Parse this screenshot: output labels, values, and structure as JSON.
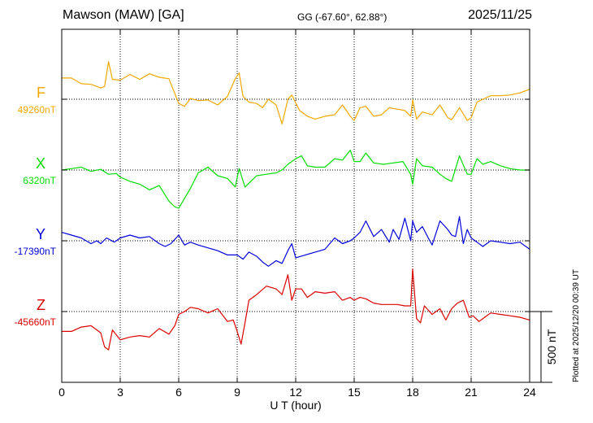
{
  "header": {
    "title": "Mawson (MAW)  [GA]",
    "coords": "GG (-67.60°,  62.88°)",
    "date": "2025/11/25"
  },
  "footer": {
    "plotted_note": "Plotted at 2025/12/20 00:39 UT"
  },
  "colors": {
    "F": "#f0a800",
    "X": "#00dd00",
    "Y": "#0000dd",
    "Z": "#dd0000",
    "axes": "#000000",
    "grid": "#000000"
  },
  "chart_data": {
    "type": "line",
    "xlabel": "U T (hour)",
    "xlim": [
      0,
      24
    ],
    "xticks": [
      0,
      3,
      6,
      9,
      12,
      15,
      18,
      21,
      24
    ],
    "xtick_labels": [
      "0",
      "3",
      "6",
      "9",
      "12",
      "15",
      "18",
      "21",
      "24"
    ],
    "scale_bar_label": "500 nT",
    "scale_bar_nT": 500,
    "grid": true,
    "series": [
      {
        "name": "F",
        "baseline_label": "49260nT",
        "color": "#f0a800",
        "x": [
          0,
          0.5,
          1,
          1.5,
          2,
          2.2,
          2.4,
          2.6,
          3,
          3.5,
          4,
          4.5,
          5,
          5.5,
          6,
          6.3,
          6.6,
          7,
          7.5,
          8,
          8.5,
          8.9,
          9.1,
          9.3,
          9.6,
          10,
          10.3,
          10.6,
          11,
          11.3,
          11.6,
          11.8,
          12.2,
          12.6,
          13,
          13.5,
          14,
          14.4,
          14.8,
          15,
          15.3,
          15.6,
          16,
          16.4,
          16.8,
          17.2,
          17.6,
          17.9,
          18,
          18.2,
          18.5,
          19,
          19.4,
          19.8,
          20,
          20.4,
          20.8,
          21,
          21.3,
          21.6,
          22,
          22.5,
          23,
          23.5,
          24
        ],
        "y": [
          150,
          150,
          110,
          105,
          80,
          90,
          265,
          140,
          135,
          175,
          140,
          180,
          155,
          145,
          -30,
          -50,
          5,
          -10,
          -5,
          -40,
          20,
          145,
          185,
          20,
          -20,
          -30,
          -60,
          0,
          -40,
          -175,
          0,
          30,
          -80,
          -120,
          -140,
          -120,
          -110,
          -40,
          -120,
          -150,
          -60,
          -50,
          -120,
          -110,
          -60,
          -70,
          -80,
          -120,
          -5,
          -140,
          -90,
          -110,
          -40,
          -130,
          -145,
          -60,
          -150,
          -130,
          -20,
          0,
          25,
          25,
          30,
          45,
          70
        ]
      },
      {
        "name": "X",
        "baseline_label": "6320nT",
        "color": "#00dd00",
        "x": [
          0,
          0.5,
          1,
          1.5,
          2,
          2.4,
          2.8,
          3,
          3.5,
          4,
          4.5,
          5,
          5.5,
          5.8,
          6,
          6.3,
          6.6,
          7,
          7.5,
          8,
          8.5,
          8.9,
          9.1,
          9.4,
          9.7,
          10,
          10.5,
          11,
          11.3,
          11.6,
          12,
          12.3,
          12.6,
          13,
          13.5,
          14,
          14.4,
          14.8,
          15,
          15.3,
          15.6,
          16,
          16.5,
          17,
          17.5,
          17.9,
          18,
          18.2,
          18.5,
          19,
          19.4,
          19.7,
          20,
          20.4,
          20.8,
          21,
          21.3,
          21.6,
          22,
          22.5,
          23,
          23.5,
          24
        ],
        "y": [
          0,
          10,
          20,
          -10,
          5,
          -30,
          -25,
          -50,
          -80,
          -100,
          -140,
          -110,
          -220,
          -260,
          -270,
          -200,
          -130,
          -20,
          20,
          -40,
          -60,
          -120,
          10,
          -120,
          -80,
          -40,
          -30,
          -20,
          0,
          40,
          80,
          100,
          30,
          20,
          20,
          80,
          70,
          140,
          60,
          60,
          120,
          50,
          40,
          50,
          60,
          -30,
          -100,
          80,
          30,
          20,
          -30,
          -60,
          -80,
          100,
          -30,
          -30,
          80,
          40,
          60,
          30,
          10,
          0,
          0
        ]
      },
      {
        "name": "Y",
        "baseline_label": "-17390nT",
        "color": "#0000dd",
        "x": [
          0,
          0.5,
          1,
          1.5,
          1.8,
          2,
          2.3,
          2.7,
          3,
          3.5,
          4,
          4.5,
          4.8,
          5,
          5.3,
          5.6,
          6,
          6.3,
          6.6,
          7,
          7.5,
          8,
          8.5,
          9,
          9.3,
          9.6,
          10,
          10.3,
          10.6,
          11,
          11.3,
          11.6,
          11.8,
          12,
          12.5,
          13,
          13.5,
          14,
          14.4,
          14.8,
          15,
          15.3,
          15.6,
          16,
          16.4,
          16.8,
          17,
          17.3,
          17.6,
          17.9,
          18,
          18.2,
          18.5,
          18.8,
          19,
          19.4,
          19.8,
          20,
          20.2,
          20.4,
          20.6,
          20.8,
          21,
          21.3,
          21.6,
          22,
          22.5,
          23,
          23.5,
          24
        ],
        "y": [
          60,
          40,
          20,
          -20,
          0,
          -20,
          20,
          -10,
          20,
          40,
          20,
          30,
          0,
          -20,
          -40,
          -20,
          40,
          -30,
          -10,
          -30,
          -50,
          -70,
          -100,
          -100,
          -130,
          -80,
          -110,
          -150,
          -180,
          -140,
          -160,
          -70,
          -20,
          -120,
          -100,
          -80,
          -60,
          20,
          -20,
          0,
          20,
          60,
          140,
          30,
          80,
          -10,
          80,
          10,
          160,
          0,
          140,
          60,
          100,
          20,
          -30,
          140,
          80,
          40,
          30,
          170,
          -20,
          80,
          20,
          -10,
          -40,
          0,
          -10,
          -20,
          -10,
          -60
        ]
      },
      {
        "name": "Z",
        "baseline_label": "-45660nT",
        "color": "#dd0000",
        "x": [
          0,
          0.5,
          1,
          1.5,
          2,
          2.2,
          2.4,
          2.6,
          3,
          3.5,
          4,
          4.5,
          5,
          5.5,
          5.8,
          6,
          6.3,
          6.6,
          7,
          7.5,
          8,
          8.5,
          8.8,
          9,
          9.2,
          9.4,
          9.6,
          10,
          10.5,
          11,
          11.3,
          11.6,
          11.8,
          12,
          12.3,
          12.6,
          13,
          13.5,
          14,
          14.4,
          14.8,
          15,
          15.3,
          15.6,
          16,
          16.4,
          16.8,
          17.2,
          17.6,
          17.9,
          18,
          18.2,
          18.4,
          18.6,
          19,
          19.4,
          19.7,
          20,
          20.3,
          20.6,
          20.9,
          21.1,
          21.4,
          21.7,
          22,
          22.5,
          23,
          23.5,
          24
        ],
        "y": [
          -140,
          -140,
          -110,
          -100,
          -150,
          -250,
          -270,
          -130,
          -200,
          -180,
          -170,
          -180,
          -120,
          -160,
          -100,
          -20,
          0,
          30,
          20,
          -10,
          20,
          -70,
          -60,
          -140,
          -230,
          -80,
          80,
          120,
          180,
          160,
          120,
          260,
          80,
          160,
          160,
          100,
          140,
          130,
          140,
          80,
          100,
          80,
          100,
          90,
          60,
          50,
          50,
          50,
          40,
          40,
          300,
          -50,
          -80,
          40,
          -20,
          20,
          -60,
          20,
          60,
          80,
          -40,
          -30,
          -70,
          -40,
          -10,
          -20,
          -30,
          -40,
          -60
        ]
      }
    ]
  }
}
